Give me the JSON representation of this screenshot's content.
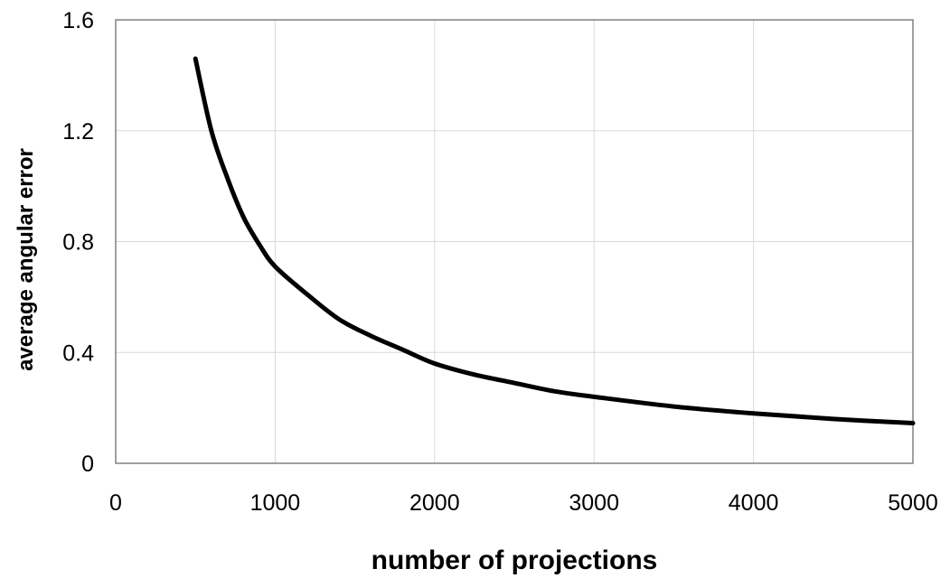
{
  "chart_data": {
    "type": "line",
    "title": "",
    "xlabel": "number of projections",
    "ylabel": "average angular error",
    "xlim": [
      0,
      5000
    ],
    "ylim": [
      0,
      1.6
    ],
    "xticks": [
      0,
      1000,
      2000,
      3000,
      4000,
      5000
    ],
    "yticks": [
      0,
      0.4,
      0.8,
      1.2,
      1.6
    ],
    "xtick_labels": [
      "0",
      "1000",
      "2000",
      "3000",
      "4000",
      "5000"
    ],
    "ytick_labels": [
      "0",
      "0.4",
      "0.8",
      "1.2",
      "1.6"
    ],
    "grid": true,
    "legend": "none",
    "series": [
      {
        "color": "#000000",
        "x": [
          500,
          600,
          700,
          800,
          900,
          1000,
          1200,
          1400,
          1600,
          1800,
          2000,
          2250,
          2500,
          2750,
          3000,
          3500,
          4000,
          4500,
          5000
        ],
        "y": [
          1.46,
          1.2,
          1.03,
          0.89,
          0.79,
          0.71,
          0.61,
          0.52,
          0.46,
          0.41,
          0.36,
          0.32,
          0.29,
          0.26,
          0.24,
          0.205,
          0.18,
          0.16,
          0.145
        ]
      }
    ]
  }
}
